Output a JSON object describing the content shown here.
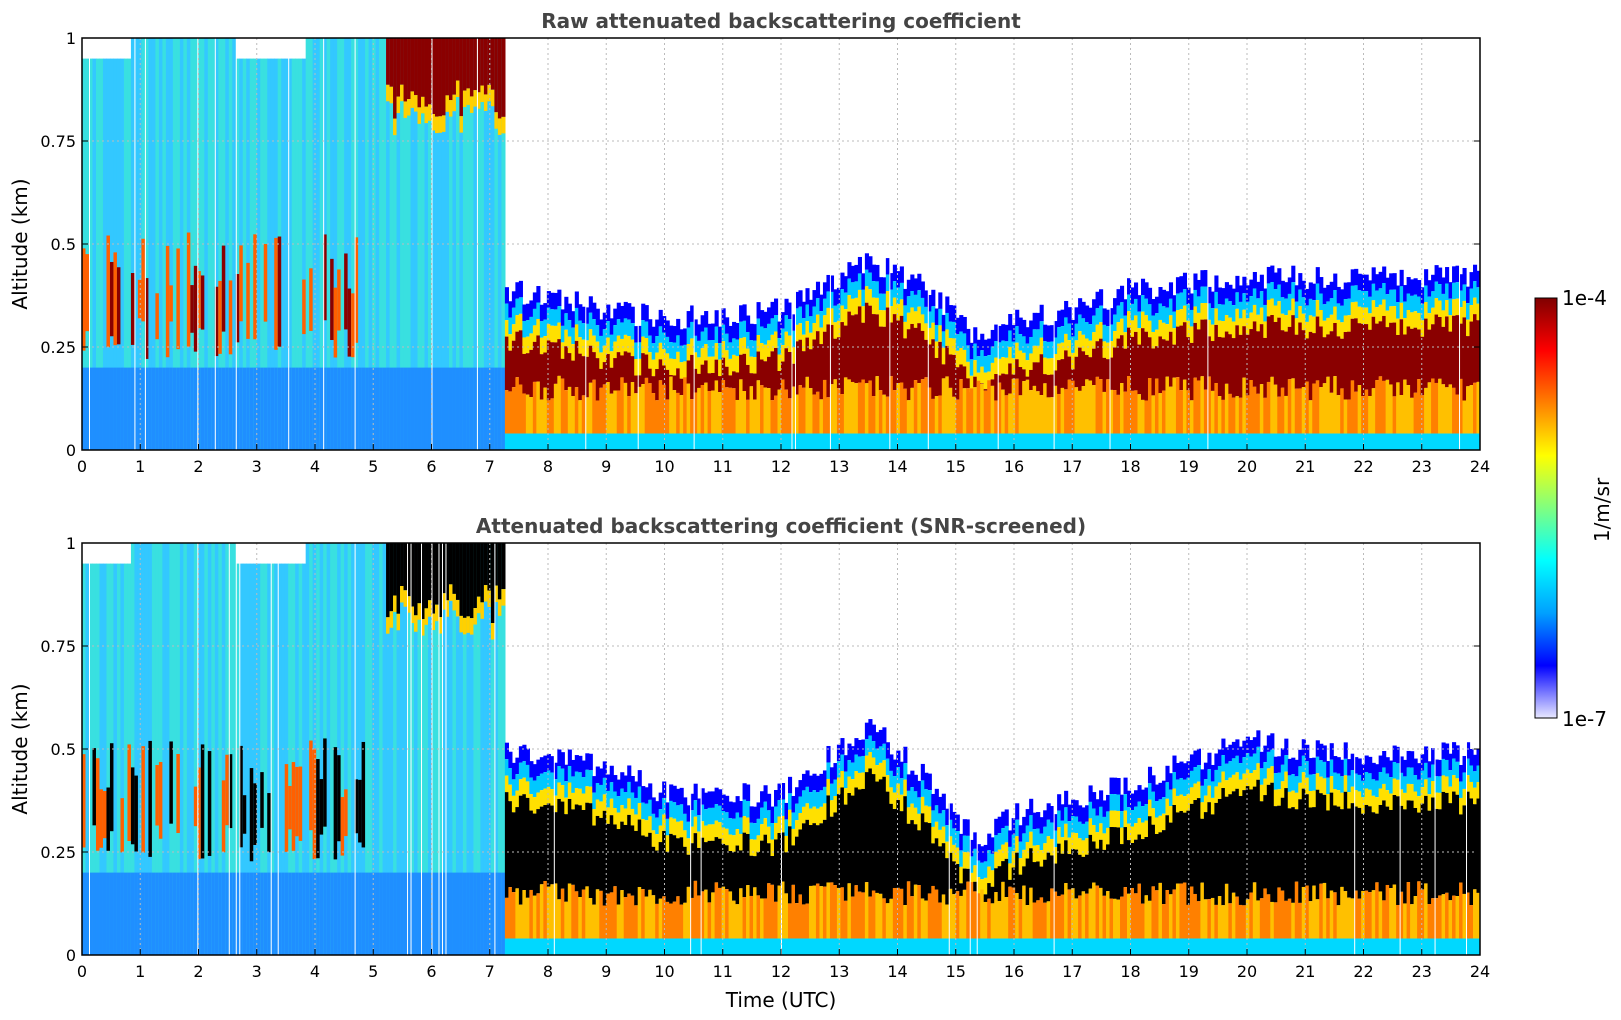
{
  "chart_data": [
    {
      "type": "heatmap",
      "title": "Raw attenuated backscattering coefficient",
      "xlabel": "",
      "ylabel": "Altitude (km)",
      "xlim": [
        0,
        24
      ],
      "ylim": [
        0,
        1
      ],
      "xticks": [
        "0",
        "1",
        "2",
        "3",
        "4",
        "5",
        "6",
        "7",
        "8",
        "9",
        "10",
        "11",
        "12",
        "13",
        "14",
        "15",
        "16",
        "17",
        "18",
        "19",
        "20",
        "21",
        "22",
        "23",
        "24"
      ],
      "yticks": [
        "0",
        "0.25",
        "0.5",
        "0.75",
        "1"
      ],
      "grid": true,
      "screened": false,
      "boundary_layer_top_km": {
        "x": [
          0,
          2,
          4,
          7.2,
          9,
          10,
          12,
          13.5,
          14.5,
          15.3,
          16,
          17,
          18,
          20,
          22,
          24
        ],
        "y": [
          0.5,
          0.5,
          0.5,
          0.35,
          0.3,
          0.28,
          0.3,
          0.42,
          0.35,
          0.24,
          0.28,
          0.3,
          0.35,
          0.38,
          0.38,
          0.38
        ]
      },
      "high_layer": {
        "x_start": 5.2,
        "x_end": 7.2,
        "base_km": [
          0.8,
          0.9
        ]
      }
    },
    {
      "type": "heatmap",
      "title": "Attenuated backscattering coefficient (SNR-screened)",
      "xlabel": "Time (UTC)",
      "ylabel": "Altitude (km)",
      "xlim": [
        0,
        24
      ],
      "ylim": [
        0,
        1
      ],
      "xticks": [
        "0",
        "1",
        "2",
        "3",
        "4",
        "5",
        "6",
        "7",
        "8",
        "9",
        "10",
        "11",
        "12",
        "13",
        "14",
        "15",
        "16",
        "17",
        "18",
        "19",
        "20",
        "21",
        "22",
        "23",
        "24"
      ],
      "yticks": [
        "0",
        "0.25",
        "0.5",
        "0.75",
        "1"
      ],
      "grid": true,
      "screened": true,
      "boundary_layer_top_km": {
        "x": [
          0,
          2,
          4,
          7.2,
          9,
          10,
          12,
          13.5,
          14.5,
          15.3,
          16,
          17,
          18,
          20,
          22,
          24
        ],
        "y": [
          0.5,
          0.5,
          0.5,
          0.45,
          0.42,
          0.35,
          0.35,
          0.52,
          0.38,
          0.24,
          0.3,
          0.34,
          0.38,
          0.48,
          0.44,
          0.45
        ]
      },
      "high_layer": {
        "x_start": 5.2,
        "x_end": 7.2,
        "base_km": [
          0.8,
          0.9
        ]
      }
    }
  ],
  "colorbar": {
    "label": "1/m/sr",
    "max_label": "1e-4",
    "min_label": "1e-7",
    "colormap": "jet",
    "colors": [
      "#e8e8ff",
      "#0000ff",
      "#00a0ff",
      "#00ffff",
      "#80ff80",
      "#ffff00",
      "#ff8000",
      "#ff0000",
      "#800000"
    ]
  }
}
